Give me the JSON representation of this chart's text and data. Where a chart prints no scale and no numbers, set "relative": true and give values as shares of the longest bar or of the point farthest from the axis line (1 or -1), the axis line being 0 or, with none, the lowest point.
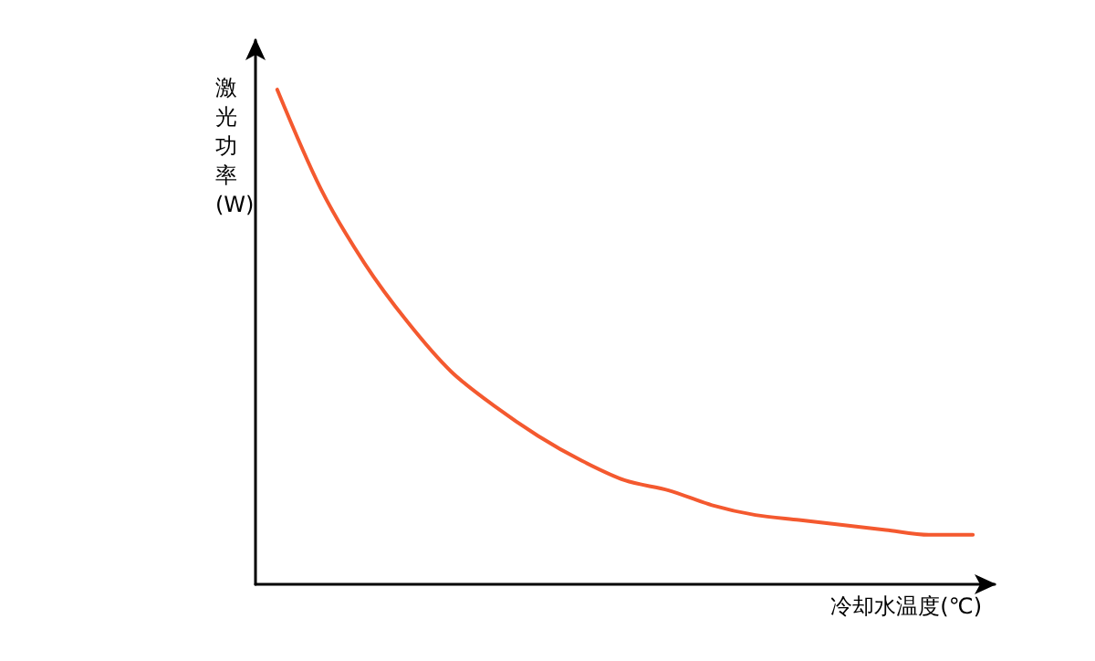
{
  "chart_data": {
    "type": "line",
    "relative": true,
    "xlabel": "冷却水温度(℃)",
    "ylabel": "激光功率(W)",
    "marker": "none",
    "line_style": "solid",
    "categories": [
      null,
      null,
      null,
      null,
      null,
      null,
      null,
      null,
      null,
      null,
      null,
      null,
      null,
      null,
      null,
      null,
      null
    ],
    "series": [
      {
        "color": "#f4592f",
        "values": [
          1.0,
          0.8,
          0.65,
          0.53,
          0.43,
          0.36,
          0.3,
          0.25,
          0.21,
          0.19,
          0.16,
          0.14,
          0.13,
          0.12,
          0.11,
          0.1,
          0.1
        ]
      }
    ]
  }
}
